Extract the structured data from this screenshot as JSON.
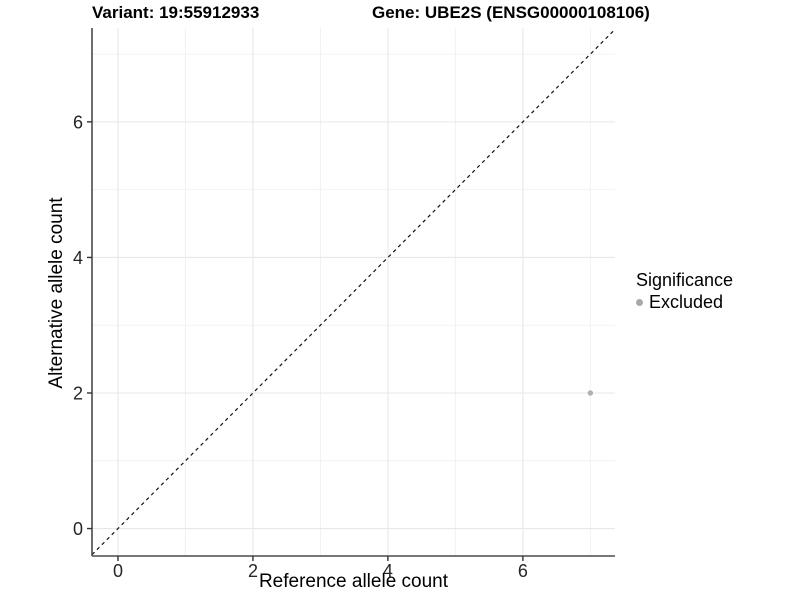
{
  "titles": {
    "variant": "Variant: 19:55912933",
    "gene": "Gene: UBE2S (ENSG00000108106)"
  },
  "chart_data": {
    "type": "scatter",
    "xlabel": "Reference allele count",
    "ylabel": "Alternative allele count",
    "xlim": [
      -0.385,
      7.365
    ],
    "ylim": [
      -0.405,
      7.385
    ],
    "x_ticks": [
      0,
      2,
      4,
      6
    ],
    "y_ticks": [
      0,
      2,
      4,
      6
    ],
    "x_minor_ticks": [
      1,
      3,
      5,
      7
    ],
    "y_minor_ticks": [
      1,
      3,
      5,
      7
    ],
    "grid": true,
    "identity_line": {
      "type": "dashed",
      "equation": "y = x"
    },
    "series": [
      {
        "name": "Excluded",
        "points": [
          {
            "x": 7,
            "y": 2
          }
        ],
        "color": "#b0b0b0",
        "point_radius": 2.7
      }
    ],
    "legend": {
      "position": "right",
      "title": "Significance",
      "items": [
        {
          "label": "Excluded",
          "color": "#a9a9a9"
        }
      ]
    },
    "colors": {
      "background": "#ffffff",
      "grid_major": "#e7e7e7",
      "grid_minor": "#f2f2f2",
      "axis_line": "#4a4a4a",
      "tick_mark": "#333333",
      "tick_label": "#262626",
      "dashed_line": "#111111"
    }
  }
}
